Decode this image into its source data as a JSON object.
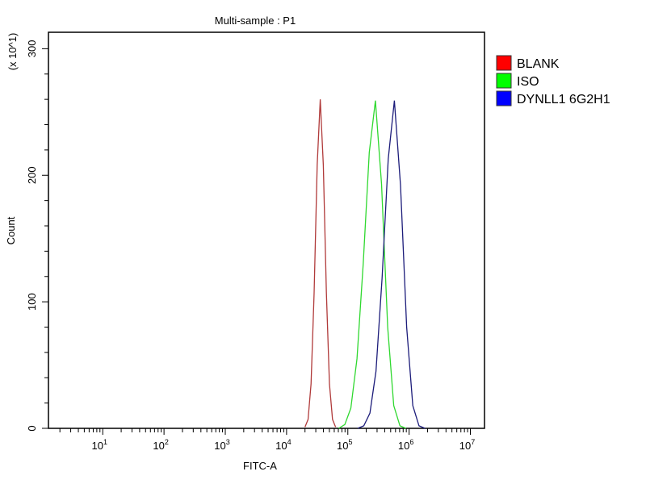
{
  "chart_data": {
    "type": "line",
    "title": "Multi-sample : P1",
    "xlabel": "FITC-A",
    "ylabel": "Count",
    "y_multiplier_label": "(x 10^1)",
    "x_scale": "log",
    "xlim": [
      1.3,
      17000000
    ],
    "ylim": [
      0,
      313
    ],
    "x_ticks": [
      {
        "value": 10,
        "base": "10",
        "exp": "1"
      },
      {
        "value": 100,
        "base": "10",
        "exp": "2"
      },
      {
        "value": 1000,
        "base": "10",
        "exp": "3"
      },
      {
        "value": 10000,
        "base": "10",
        "exp": "4"
      },
      {
        "value": 100000,
        "base": "10",
        "exp": "5"
      },
      {
        "value": 1000000,
        "base": "10",
        "exp": "6"
      },
      {
        "value": 10000000,
        "base": "10",
        "exp": "7"
      }
    ],
    "y_ticks": [
      "0",
      "100",
      "200",
      "300"
    ],
    "grid": false,
    "legend_position": "right",
    "series": [
      {
        "name": "BLANK",
        "line_color": "#b03a3a",
        "legend_color": "#ff0000",
        "x": [
          20000,
          22400,
          25100,
          28200,
          31600,
          35500,
          39800,
          44700,
          50100,
          56200,
          63100
        ],
        "y": [
          1,
          7,
          35,
          107,
          208,
          260,
          208,
          107,
          35,
          7,
          1
        ]
      },
      {
        "name": "ISO",
        "line_color": "#2fd82f",
        "legend_color": "#00ff00",
        "x": [
          70800,
          89100,
          112000,
          141000,
          178000,
          224000,
          282000,
          355000,
          447000,
          562000,
          708000,
          891000
        ],
        "y": [
          0,
          3,
          16,
          55,
          130,
          218,
          259,
          193,
          80,
          18,
          2,
          0
        ]
      },
      {
        "name": "DYNLL1 6G2H1",
        "line_color": "#1c1c7a",
        "legend_color": "#0000ff",
        "x": [
          145000,
          182000,
          229000,
          288000,
          363000,
          457000,
          575000,
          724000,
          912000,
          1150000,
          1450000,
          1820000
        ],
        "y": [
          0,
          2,
          12,
          45,
          119,
          213,
          259,
          192,
          80,
          18,
          2,
          0
        ]
      }
    ]
  }
}
